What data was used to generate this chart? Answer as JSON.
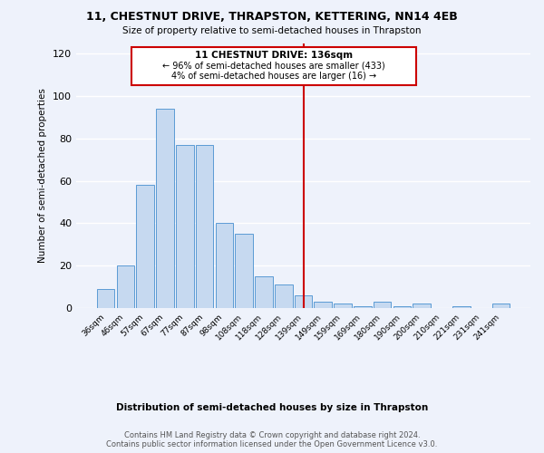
{
  "title": "11, CHESTNUT DRIVE, THRAPSTON, KETTERING, NN14 4EB",
  "subtitle": "Size of property relative to semi-detached houses in Thrapston",
  "xlabel": "Distribution of semi-detached houses by size in Thrapston",
  "ylabel": "Number of semi-detached properties",
  "bin_labels": [
    "36sqm",
    "46sqm",
    "57sqm",
    "67sqm",
    "77sqm",
    "87sqm",
    "98sqm",
    "108sqm",
    "118sqm",
    "128sqm",
    "139sqm",
    "149sqm",
    "159sqm",
    "169sqm",
    "180sqm",
    "190sqm",
    "200sqm",
    "210sqm",
    "221sqm",
    "231sqm",
    "241sqm"
  ],
  "bar_heights": [
    9,
    20,
    58,
    94,
    77,
    77,
    40,
    35,
    15,
    11,
    6,
    3,
    2,
    1,
    3,
    1,
    2,
    0,
    1,
    0,
    2
  ],
  "bar_color": "#c6d9f0",
  "bar_edgecolor": "#5b9bd5",
  "vline_x_index": 10,
  "vline_color": "#cc0000",
  "annotation_title": "11 CHESTNUT DRIVE: 136sqm",
  "annotation_line1": "← 96% of semi-detached houses are smaller (433)",
  "annotation_line2": "4% of semi-detached houses are larger (16) →",
  "annotation_box_edgecolor": "#cc0000",
  "ylim": [
    0,
    125
  ],
  "yticks": [
    0,
    20,
    40,
    60,
    80,
    100,
    120
  ],
  "footer1": "Contains HM Land Registry data © Crown copyright and database right 2024.",
  "footer2": "Contains public sector information licensed under the Open Government Licence v3.0.",
  "background_color": "#eef2fb",
  "grid_color": "#ffffff"
}
